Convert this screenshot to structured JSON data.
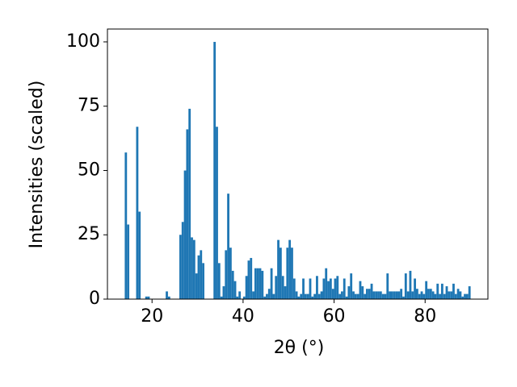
{
  "chart_data": {
    "type": "histogram",
    "xlabel": "2θ (°)",
    "ylabel": "Intensities (scaled)",
    "color": "#1f77b4",
    "bins": [
      14,
      14.5,
      15,
      15.5,
      16,
      16.5,
      17,
      17.5,
      18,
      18.5,
      19,
      19.5,
      20,
      20.5,
      21,
      21.5,
      22,
      22.5,
      23,
      23.5,
      24,
      24.5,
      25,
      25.5,
      26,
      26.5,
      27,
      27.5,
      28,
      28.5,
      29,
      29.5,
      30,
      30.5,
      31,
      31.5,
      32,
      32.5,
      33,
      33.5,
      34,
      34.5,
      35,
      35.5,
      36,
      36.5,
      37,
      37.5,
      38,
      38.5,
      39,
      39.5,
      40,
      40.5,
      41,
      41.5,
      42,
      42.5,
      43,
      43.5,
      44,
      44.5,
      45,
      45.5,
      46,
      46.5,
      47,
      47.5,
      48,
      48.5,
      49,
      49.5,
      50,
      50.5,
      51,
      51.5,
      52,
      52.5,
      53,
      53.5,
      54,
      54.5,
      55,
      55.5,
      56,
      56.5,
      57,
      57.5,
      58,
      58.5,
      59,
      59.5,
      60,
      60.5,
      61,
      61.5,
      62,
      62.5,
      63,
      63.5,
      64,
      64.5,
      65,
      65.5,
      66,
      66.5,
      67,
      67.5,
      68,
      68.5,
      69,
      69.5,
      70,
      70.5,
      71,
      71.5,
      72,
      72.5,
      73,
      73.5,
      74,
      74.5,
      75,
      75.5,
      76,
      76.5,
      77,
      77.5,
      78,
      78.5,
      79,
      79.5,
      80,
      80.5,
      81,
      81.5,
      82,
      82.5,
      83,
      83.5,
      84,
      84.5,
      85,
      85.5,
      86,
      86.5,
      87,
      87.5,
      88,
      88.5,
      89,
      89.5,
      90
    ],
    "values": [
      57,
      29,
      0,
      0,
      0,
      67,
      34,
      0,
      0,
      1,
      1,
      0,
      0,
      0,
      0,
      0,
      0,
      0,
      3,
      1,
      0,
      0,
      0,
      0,
      25,
      30,
      50,
      66,
      74,
      24,
      23,
      10,
      17,
      19,
      14,
      0,
      0,
      0,
      0,
      100,
      67,
      14,
      1,
      5,
      19,
      41,
      20,
      11,
      7,
      1,
      3,
      0,
      1,
      9,
      15,
      16,
      3,
      12,
      12,
      12,
      11,
      1,
      2,
      4,
      12,
      2,
      9,
      23,
      20,
      9,
      5,
      20,
      23,
      20,
      8,
      3,
      1,
      2,
      8,
      2,
      2,
      8,
      1,
      2,
      9,
      2,
      3,
      8,
      12,
      7,
      8,
      4,
      8,
      9,
      2,
      3,
      8,
      1,
      5,
      10,
      3,
      2,
      2,
      7,
      5,
      2,
      4,
      4,
      6,
      3,
      3,
      3,
      3,
      2,
      2,
      10,
      3,
      3,
      3,
      3,
      3,
      4,
      1,
      10,
      3,
      11,
      3,
      8,
      4,
      2,
      3,
      2,
      7,
      4,
      4,
      3,
      2,
      6,
      2,
      6,
      2,
      5,
      3,
      3,
      6,
      2,
      4,
      3,
      1,
      2,
      2,
      5
    ],
    "xlim": [
      10.2,
      93.8
    ],
    "ylim": [
      0,
      105
    ],
    "xticks": [
      20,
      40,
      60,
      80
    ],
    "yticks": [
      0,
      25,
      50,
      75,
      100
    ],
    "grid": false
  }
}
